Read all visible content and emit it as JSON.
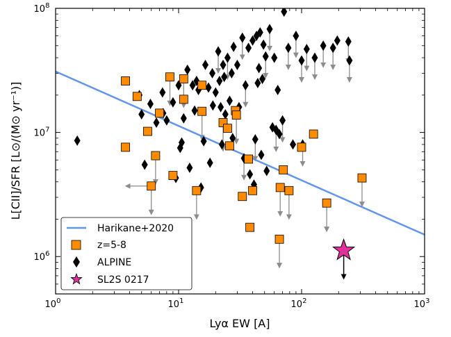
{
  "chart_data": {
    "type": "scatter",
    "xscale": "log",
    "yscale": "log",
    "xlim": [
      1,
      1000
    ],
    "ylim": [
      500000,
      100000000
    ],
    "xlabel": "Lyα EW [A]",
    "ylabel": "L[CII]/SFR [L⊙/(M⊙ yr⁻¹)]",
    "x_ticks": [
      {
        "value": 1,
        "base": "10",
        "exp": "0"
      },
      {
        "value": 10,
        "base": "10",
        "exp": "1"
      },
      {
        "value": 100,
        "base": "10",
        "exp": "2"
      },
      {
        "value": 1000,
        "base": "10",
        "exp": "3"
      }
    ],
    "y_ticks": [
      {
        "value": 1000000,
        "base": "10",
        "exp": "6"
      },
      {
        "value": 10000000,
        "base": "10",
        "exp": "7"
      },
      {
        "value": 100000000,
        "base": "10",
        "exp": "8"
      }
    ],
    "legend": {
      "position": "lower-left",
      "entries": [
        {
          "label": "Harikane+2020",
          "marker": "line",
          "color": "#6495ed"
        },
        {
          "label": "z=5-8",
          "marker": "square",
          "color": "#ff8c00"
        },
        {
          "label": "ALPINE",
          "marker": "diamond",
          "color": "#000000"
        },
        {
          "label": "SL2S 0217",
          "marker": "star",
          "color": "#e0309a"
        }
      ]
    },
    "series": [
      {
        "name": "Harikane+2020",
        "kind": "line",
        "color": "#6495ed",
        "points": [
          [
            1,
            31000000
          ],
          [
            1000,
            1500000
          ]
        ]
      },
      {
        "name": "z=5-8",
        "kind": "square",
        "color": "#ff8c00",
        "points": [
          [
            3.7,
            26000000
          ],
          [
            3.7,
            7600000
          ],
          [
            4.6,
            19500000
          ],
          [
            5.6,
            10200000
          ],
          [
            6.0,
            3700000
          ],
          [
            6.5,
            6500000
          ],
          [
            7.0,
            14300000
          ],
          [
            8.5,
            28000000
          ],
          [
            9.0,
            4500000
          ],
          [
            11.0,
            27000000
          ],
          [
            11.0,
            18500000
          ],
          [
            14.0,
            3400000
          ],
          [
            15.5,
            24000000
          ],
          [
            15.5,
            14800000
          ],
          [
            23.0,
            12000000
          ],
          [
            25.0,
            10800000
          ],
          [
            26.0,
            7800000
          ],
          [
            29.0,
            15000000
          ],
          [
            29.5,
            13800000
          ],
          [
            33.0,
            3050000
          ],
          [
            37.0,
            6100000
          ],
          [
            38.0,
            1720000
          ],
          [
            40.0,
            3400000
          ],
          [
            66.0,
            1380000
          ],
          [
            67.0,
            3600000
          ],
          [
            71.0,
            5000000
          ],
          [
            79.0,
            3400000
          ],
          [
            100.0,
            7600000
          ],
          [
            125.0,
            9700000
          ],
          [
            160.0,
            2700000
          ],
          [
            310.0,
            4300000
          ]
        ],
        "upper_limits": [
          [
            6.0,
            3700000
          ],
          [
            6.5,
            6500000
          ],
          [
            8.5,
            28000000
          ],
          [
            11.0,
            27000000
          ],
          [
            14.0,
            3400000
          ],
          [
            15.5,
            14800000
          ],
          [
            23.0,
            12000000
          ],
          [
            29.5,
            13800000
          ],
          [
            66.0,
            1380000
          ],
          [
            67.0,
            3600000
          ],
          [
            79.0,
            3400000
          ],
          [
            160.0,
            2700000
          ],
          [
            310.0,
            4300000
          ]
        ],
        "lower_x_limits": [
          [
            6.0,
            3700000
          ]
        ]
      },
      {
        "name": "ALPINE",
        "kind": "diamond",
        "color": "#000000",
        "points": [
          [
            1.5,
            8600000
          ],
          [
            4.8,
            20000000
          ],
          [
            5.0,
            14000000
          ],
          [
            5.3,
            5500000
          ],
          [
            5.9,
            17000000
          ],
          [
            6.6,
            12000000
          ],
          [
            7.4,
            21000000
          ],
          [
            7.5,
            14300000
          ],
          [
            8.0,
            12500000
          ],
          [
            9.0,
            17500000
          ],
          [
            9.5,
            4300000
          ],
          [
            10.0,
            24000000
          ],
          [
            10.3,
            7500000
          ],
          [
            10.6,
            8300000
          ],
          [
            11.0,
            13000000
          ],
          [
            11.8,
            32000000
          ],
          [
            12.3,
            5200000
          ],
          [
            13.0,
            24000000
          ],
          [
            13.5,
            15000000
          ],
          [
            14.0,
            26000000
          ],
          [
            14.5,
            22000000
          ],
          [
            15.2,
            3600000
          ],
          [
            16.0,
            8500000
          ],
          [
            16.5,
            35000000
          ],
          [
            17.5,
            23000000
          ],
          [
            18.0,
            5700000
          ],
          [
            18.8,
            30000000
          ],
          [
            19.0,
            16500000
          ],
          [
            20.0,
            21000000
          ],
          [
            21.0,
            45000000
          ],
          [
            21.5,
            26000000
          ],
          [
            22.0,
            16000000
          ],
          [
            22.5,
            8000000
          ],
          [
            23.0,
            35000000
          ],
          [
            23.5,
            28000000
          ],
          [
            24.0,
            14000000
          ],
          [
            25.0,
            40000000
          ],
          [
            26.0,
            18000000
          ],
          [
            27.0,
            30000000
          ],
          [
            27.5,
            9000000
          ],
          [
            28.0,
            49000000
          ],
          [
            30.0,
            35000000
          ],
          [
            31.0,
            16000000
          ],
          [
            33.0,
            58000000
          ],
          [
            34.0,
            6200000
          ],
          [
            35.0,
            24000000
          ],
          [
            37.0,
            48000000
          ],
          [
            38.0,
            4600000
          ],
          [
            40.0,
            55000000
          ],
          [
            41.0,
            3800000
          ],
          [
            42.0,
            8800000
          ],
          [
            43.0,
            60000000
          ],
          [
            44.0,
            25000000
          ],
          [
            45.0,
            33000000
          ],
          [
            46.0,
            64000000
          ],
          [
            47.0,
            6600000
          ],
          [
            48.0,
            27000000
          ],
          [
            49.0,
            51000000
          ],
          [
            51.0,
            41000000
          ],
          [
            52.0,
            4900000
          ],
          [
            55.0,
            68000000
          ],
          [
            58.0,
            11000000
          ],
          [
            60.0,
            40000000
          ],
          [
            62.0,
            10500000
          ],
          [
            64.0,
            22000000
          ],
          [
            66.0,
            9700000
          ],
          [
            70.0,
            12500000
          ],
          [
            72.0,
            94000000
          ],
          [
            78.0,
            48000000
          ],
          [
            85.0,
            8000000
          ],
          [
            90.0,
            60000000
          ],
          [
            100.0,
            38000000
          ],
          [
            102.0,
            8000000
          ],
          [
            110.0,
            47000000
          ],
          [
            128.0,
            40000000
          ],
          [
            150.0,
            50000000
          ],
          [
            180.0,
            48000000
          ],
          [
            195.0,
            55000000
          ],
          [
            240.0,
            54000000
          ],
          [
            245.0,
            38000000
          ]
        ]
      },
      {
        "name": "SL2S 0217",
        "kind": "star",
        "color": "#e0309a",
        "points": [
          [
            220,
            1120000
          ]
        ],
        "upper_limits": [
          [
            220,
            1120000
          ]
        ]
      }
    ]
  }
}
